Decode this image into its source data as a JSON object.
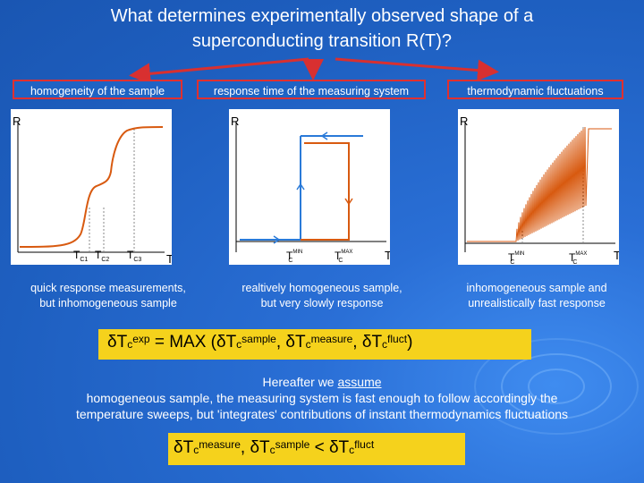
{
  "title": {
    "line1": "What determines experimentally observed shape of a",
    "line2": "superconducting transition R(T)?"
  },
  "labels": [
    "homogeneity of the sample",
    "response time of the measuring system",
    "thermodynamic fluctuations"
  ],
  "panels": {
    "left": {
      "y_axis": "R",
      "x_axis": "T",
      "tick1": "T",
      "tick1_sub": "C1",
      "tick2": "T",
      "tick2_sub": "C2",
      "tick3": "T",
      "tick3_sub": "C3"
    },
    "middle": {
      "y_axis": "R",
      "x_axis": "T",
      "tick1": "T",
      "tick1_sub": "C",
      "tick1_sup": "MIN",
      "tick2": "T",
      "tick2_sub": "C",
      "tick2_sup": "MAX"
    },
    "right": {
      "y_axis": "R",
      "x_axis": "T",
      "tick1": "T",
      "tick1_sub": "C",
      "tick1_sup": "MIN",
      "tick2": "T",
      "tick2_sub": "C",
      "tick2_sup": "MAX"
    }
  },
  "captions": [
    {
      "line1": "quick response measurements,",
      "line2": "but inhomogeneous sample"
    },
    {
      "line1": "realtively homogeneous sample,",
      "line2": "but very slowly response"
    },
    {
      "line1": "inhomogeneous sample and",
      "line2": "unrealistically fast response"
    }
  ],
  "formula1": {
    "d1": "δ",
    "t1": "T",
    "c1": "c",
    "s1": "exp",
    "eq": " = MAX (",
    "d2": "δ",
    "t2": "T",
    "c2": "c",
    "s2": "sample",
    "sep1": ", ",
    "d3": "δ",
    "t3": "T",
    "c3": "c",
    "s3": "measure",
    "sep2": ", ",
    "d4": "δ",
    "t4": "T",
    "c4": "c",
    "s4": "fluct",
    "close": ")"
  },
  "paragraph": {
    "lead": "Hereafter we ",
    "underlined": "assume",
    "line2": "homogeneous sample, the measuring system is fast enough to follow accordingly the",
    "line3": "temperature sweeps, but 'integrates' contributions of instant thermodynamics fluctuations"
  },
  "formula2": {
    "d1": "δ",
    "t1": "T",
    "c1": "c",
    "s1": "measure",
    "sep": ", ",
    "d2": "δ",
    "t2": "T",
    "c2": "c",
    "s2": "sample",
    "lt": " < ",
    "d3": "δ",
    "t3": "T",
    "c3": "c",
    "s3": "fluct"
  },
  "colors": {
    "background": "#1f63c4",
    "label_border": "#e03030",
    "formula_box": "#f5d21c",
    "curve": "#d85a10",
    "curve_blue": "#2a7ad8",
    "arrow": "#d83030"
  }
}
